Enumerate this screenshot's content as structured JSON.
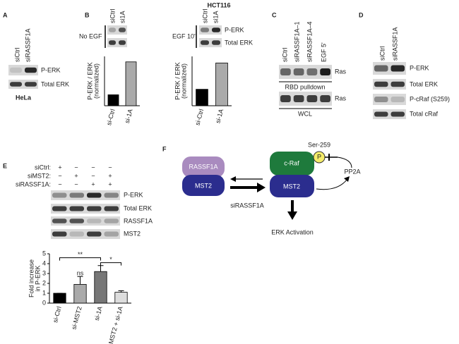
{
  "figure": {
    "panel_labels": [
      "A",
      "B",
      "C",
      "D",
      "E",
      "F"
    ],
    "A": {
      "lanes": [
        "siCtrl",
        "siRASSF1A"
      ],
      "rows": [
        "P-ERK",
        "Total ERK"
      ],
      "cell_line": "HeLa"
    },
    "B": {
      "cell_line": "HCT116",
      "left": {
        "lanes": [
          "siCtrl",
          "si1A"
        ],
        "condition": "No EGF"
      },
      "right": {
        "lanes": [
          "siCtrl",
          "si1A"
        ],
        "condition": "EGF 10'",
        "rows": [
          "P-ERK",
          "Total ERK"
        ]
      }
    },
    "C": {
      "lanes": [
        "siCtrl",
        "siRASSF1A–1",
        "siRASSF1A–4",
        "EGF 5'"
      ],
      "rows": [
        "Ras",
        "Ras"
      ],
      "groups": [
        "RBD pulldown",
        "WCL"
      ]
    },
    "D": {
      "lanes": [
        "siCtrl",
        "siRASSF1A"
      ],
      "rows": [
        "P-ERK",
        "Total ERK",
        "P-cRaf (S259)",
        "Total cRaf"
      ]
    },
    "E": {
      "conditions": [
        "siCtrl:",
        "siMST2:",
        "siRASSF1A:"
      ],
      "signs": [
        [
          "+",
          "−",
          "−",
          "−"
        ],
        [
          "−",
          "+",
          "−",
          "+"
        ],
        [
          "−",
          "−",
          "+",
          "+"
        ]
      ],
      "rows": [
        "P-ERK",
        "Total ERK",
        "RASSF1A",
        "MST2"
      ]
    },
    "F": {
      "left_top": "RASSF1A",
      "left_bottom": "MST2",
      "right_top": "c-Raf",
      "right_bottom": "MST2",
      "site": "Ser-259",
      "phospho": "P",
      "phosphatase": "PP2A",
      "knockdown": "siRASSF1A",
      "outcome": "ERK Activation"
    }
  },
  "chart_data": [
    {
      "type": "bar",
      "ylabel": [
        "P-ERK / ERK",
        "(normalized)"
      ],
      "categories": [
        "si-Ctrl",
        "si-1A"
      ],
      "values": [
        1,
        4
      ],
      "colors": [
        "#000000",
        "#aaaaaa"
      ],
      "ylim": [
        0,
        4.5
      ]
    },
    {
      "type": "bar",
      "ylabel": [
        "P-ERK / ERK",
        "(normalized)"
      ],
      "categories": [
        "si-Ctrl",
        "si-1A"
      ],
      "values": [
        1,
        2.6
      ],
      "colors": [
        "#000000",
        "#aaaaaa"
      ],
      "ylim": [
        0,
        3
      ]
    },
    {
      "type": "bar",
      "ylabel": [
        "Fold increase",
        "in P-ERK"
      ],
      "categories": [
        "si-Ctrl",
        "si-MST2",
        "si-1A",
        "si-MST2 + si-1A"
      ],
      "values": [
        1,
        1.9,
        3.2,
        1.1
      ],
      "errors": [
        0,
        0.8,
        0.6,
        0.15
      ],
      "colors": [
        "#000000",
        "#aaaaaa",
        "#777777",
        "#dddddd"
      ],
      "ylim": [
        0,
        5
      ],
      "yticks": [
        0,
        1,
        2,
        3,
        4,
        5
      ],
      "annotations": [
        "**",
        "ns",
        "*"
      ]
    }
  ]
}
